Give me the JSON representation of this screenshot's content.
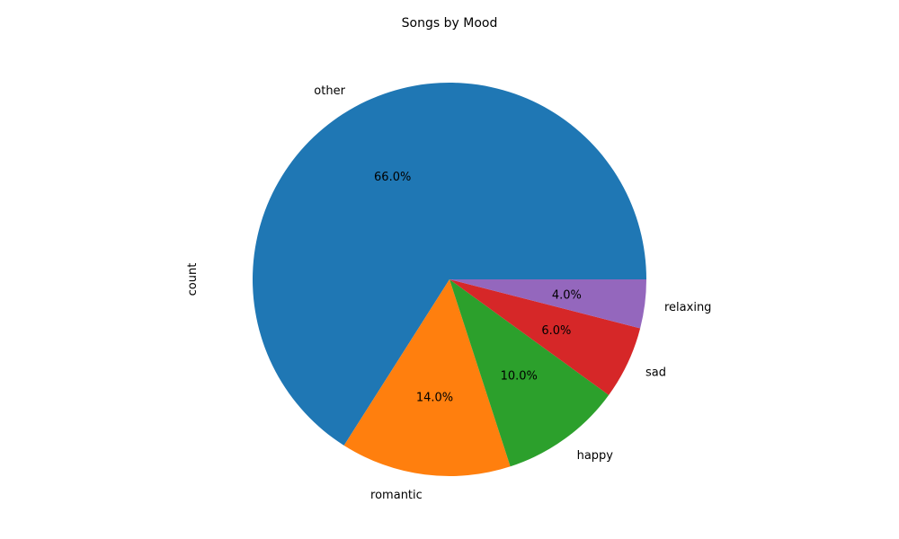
{
  "chart_data": {
    "type": "pie",
    "title": "Songs by Mood",
    "ylabel": "count",
    "start_angle_deg": 0,
    "direction": "counterclockwise",
    "slices": [
      {
        "label": "other",
        "value": 66.0,
        "pct_label": "66.0%",
        "color": "#1f77b4"
      },
      {
        "label": "romantic",
        "value": 14.0,
        "pct_label": "14.0%",
        "color": "#ff7f0e"
      },
      {
        "label": "happy",
        "value": 10.0,
        "pct_label": "10.0%",
        "color": "#2ca02c"
      },
      {
        "label": "sad",
        "value": 6.0,
        "pct_label": "6.0%",
        "color": "#d62728"
      },
      {
        "label": "relaxing",
        "value": 4.0,
        "pct_label": "4.0%",
        "color": "#9467bd"
      }
    ]
  }
}
